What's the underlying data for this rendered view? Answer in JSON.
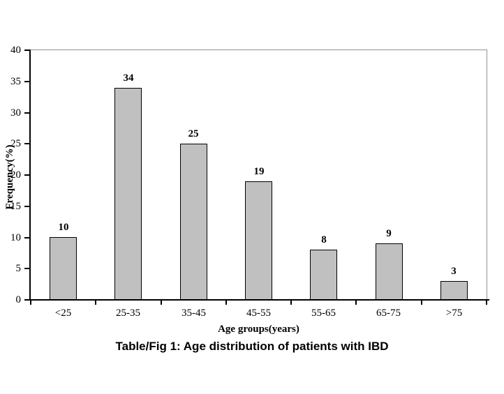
{
  "chart_data": {
    "type": "bar",
    "title": "Table/Fig 1: Age distribution of patients with IBD",
    "xlabel": "Age groups(years)",
    "ylabel": "Frequency(%)",
    "categories": [
      "<25",
      "25-35",
      "35-45",
      "45-55",
      "55-65",
      "65-75",
      ">75"
    ],
    "values": [
      10,
      34,
      25,
      19,
      8,
      9,
      3
    ],
    "ylim": [
      0,
      40
    ],
    "yticks": [
      0,
      5,
      10,
      15,
      20,
      25,
      30,
      35,
      40
    ],
    "data_labels": true,
    "grid": false,
    "legend_position": "none",
    "bar_fill_color": "#c0c0c0",
    "bar_border_color": "#000000",
    "plot_border_color": "#909090",
    "axis_color": "#000000",
    "background_color": "#ffffff"
  }
}
